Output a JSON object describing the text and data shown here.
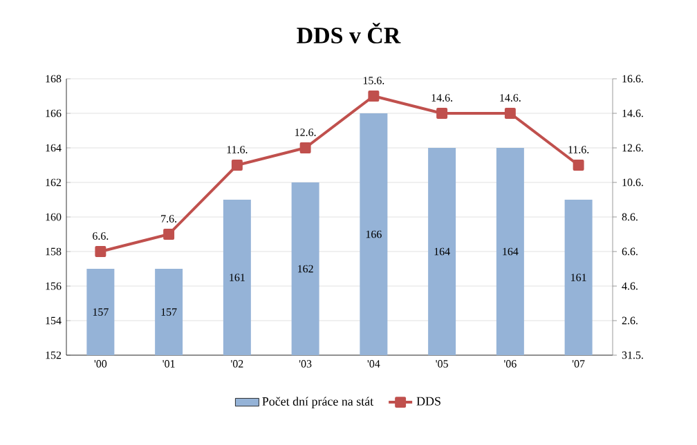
{
  "chart_data": {
    "type": "bar",
    "title": "DDS v ČR",
    "categories": [
      "'00",
      "'01",
      "'02",
      "'03",
      "'04",
      "'05",
      "'06",
      "'07"
    ],
    "series": [
      {
        "name": "Počet dní práce na stát",
        "color": "#95b3d7",
        "values": [
          157,
          157,
          161,
          162,
          166,
          164,
          164,
          161
        ],
        "value_labels": [
          "157",
          "157",
          "161",
          "162",
          "166",
          "164",
          "164",
          "161"
        ]
      },
      {
        "name": "DDS",
        "type": "line",
        "color": "#c0504d",
        "marker": "square",
        "values": [
          158,
          159,
          163,
          164,
          167,
          166,
          166,
          163
        ]
      }
    ],
    "ylim": [
      152,
      168
    ],
    "yticks": [
      152,
      154,
      156,
      158,
      160,
      162,
      164,
      166,
      168
    ],
    "annotations": [
      {
        "text": "6.6.",
        "x": "'00",
        "y": 158
      },
      {
        "text": "7.6.",
        "x": "'01",
        "y": 159
      },
      {
        "text": "11.6.",
        "x": "'02",
        "y": 163
      },
      {
        "text": "12.6.",
        "x": "'03",
        "y": 164
      },
      {
        "text": "15.6.",
        "x": "'04",
        "y": 167
      },
      {
        "text": "14.6.",
        "x": "'05",
        "y": 166
      },
      {
        "text": "14.6.",
        "x": "'06",
        "y": 166
      },
      {
        "text": "11.6.",
        "x": "'07",
        "y": 163
      },
      "31.5.",
      "2.6.",
      "4.6.",
      "6.6.",
      "8.6.",
      "10.6.",
      "12.6.",
      "14.6.",
      "16.6."
    ],
    "grid": "y",
    "legend": "bottom"
  }
}
